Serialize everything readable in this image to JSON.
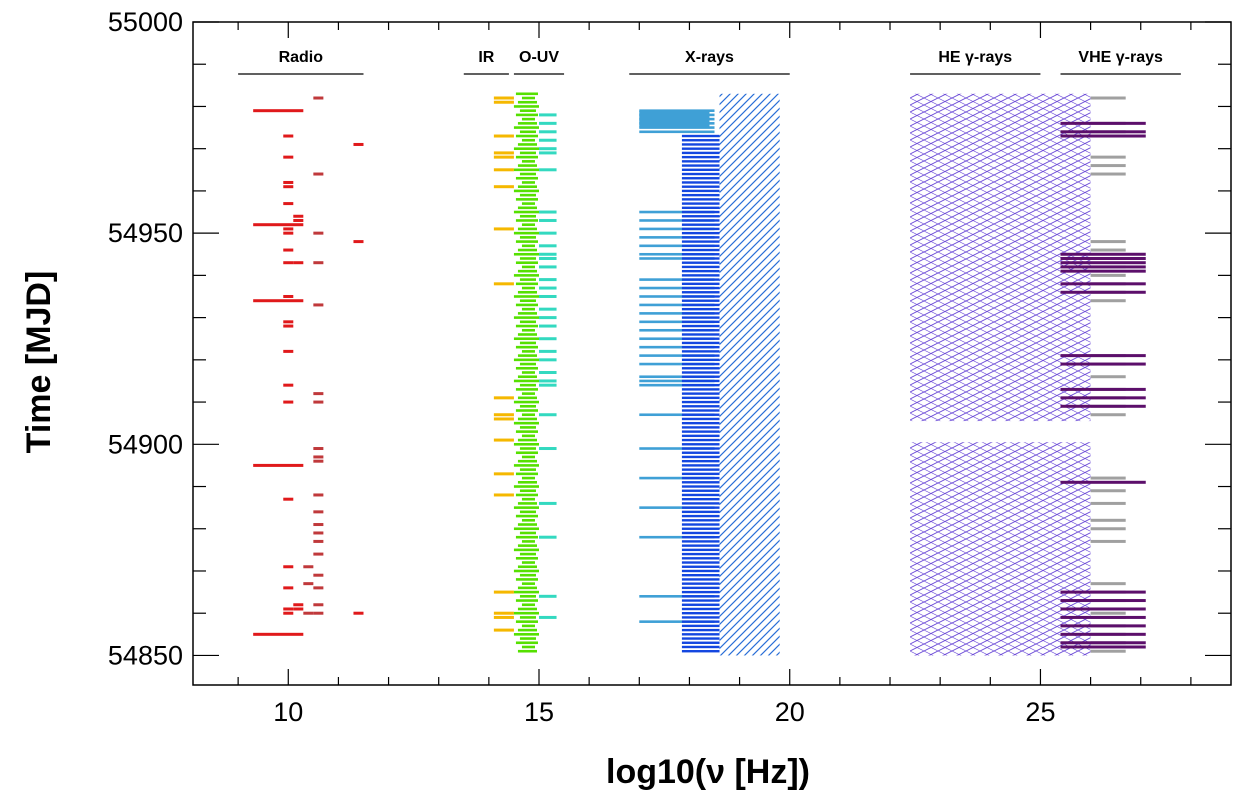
{
  "chart_data": {
    "type": "scatter",
    "xlabel": "log10(ν [Hz])",
    "ylabel": "Time [MJD]",
    "xlim": [
      8.1,
      28.8
    ],
    "ylim": [
      54843,
      55000
    ],
    "x_ticks": [
      10,
      15,
      20,
      25
    ],
    "y_ticks": [
      54850,
      54900,
      54950,
      55000
    ],
    "grid": false,
    "colors": {
      "radio": "#e0191b",
      "radio_dark": "#c0393b",
      "ir": "#f5b800",
      "optical": "#55e000",
      "uv": "#33d9c0",
      "xray_light": "#3fa0d6",
      "xray_dark": "#1346e0",
      "xray_hatch": "#2a6fd8",
      "he_hatch": "#6f4fd8",
      "vhe_grey": "#a0a0a0",
      "vhe_purple": "#5c0f6b"
    },
    "bands": [
      {
        "name": "Radio",
        "x_range": [
          9.0,
          11.5
        ]
      },
      {
        "name": "IR",
        "x_range": [
          13.5,
          14.4
        ]
      },
      {
        "name": "O-UV",
        "x_range": [
          14.5,
          15.5
        ]
      },
      {
        "name": "X-rays",
        "x_range": [
          16.8,
          20.0
        ]
      },
      {
        "name": "HE γ-rays",
        "x_range": [
          22.4,
          25.0
        ]
      },
      {
        "name": "VHE γ-rays",
        "x_range": [
          25.4,
          27.8
        ]
      }
    ],
    "series": [
      {
        "name": "Radio",
        "observations": [
          {
            "x": [
              9.3,
              10.3
            ],
            "mjd": [
              54979,
              54934,
              54952,
              54895,
              54855
            ]
          },
          {
            "x": [
              9.9,
              10.1
            ],
            "mjd": [
              54973,
              54968,
              54962,
              54961,
              54957,
              54951,
              54950,
              54946,
              54943,
              54935,
              54929,
              54928,
              54922,
              54914,
              54910,
              54887,
              54871,
              54866,
              54861,
              54860
            ]
          },
          {
            "x": [
              10.1,
              10.3
            ],
            "mjd": [
              54954,
              54953,
              54943,
              54862,
              54861
            ]
          },
          {
            "x": [
              10.5,
              10.7
            ],
            "mjd": [
              54982,
              54964,
              54950,
              54943,
              54933,
              54912,
              54910,
              54899,
              54897,
              54896,
              54888,
              54884,
              54881,
              54879,
              54877,
              54874,
              54869,
              54866,
              54862,
              54860
            ]
          },
          {
            "x": [
              10.3,
              10.5
            ],
            "mjd": [
              54871,
              54867,
              54860
            ]
          },
          {
            "x": [
              11.3,
              11.5
            ],
            "mjd": [
              54971,
              54948,
              54860
            ]
          }
        ]
      },
      {
        "name": "IR",
        "observations": [
          {
            "x": [
              14.1,
              14.5
            ],
            "mjd": [
              54982,
              54981,
              54973,
              54969,
              54968,
              54965,
              54961,
              54951,
              54938,
              54911,
              54907,
              54906,
              54901,
              54893,
              54888,
              54865,
              54860,
              54859,
              54856
            ]
          }
        ]
      },
      {
        "name": "Optical",
        "x": [
          14.5,
          15.0
        ],
        "mjd_range": [
          54851,
          54983
        ],
        "cadence": 1
      },
      {
        "name": "UV",
        "x": [
          15.0,
          15.35
        ],
        "mjd": [
          54978,
          54976,
          54974,
          54972,
          54970,
          54969,
          54965,
          54955,
          54953,
          54950,
          54947,
          54945,
          54944,
          54942,
          54939,
          54937,
          54935,
          54932,
          54930,
          54928,
          54925,
          54922,
          54920,
          54917,
          54915,
          54914,
          54907,
          54899,
          54886,
          54878,
          54864,
          54859
        ]
      },
      {
        "name": "X-ray (soft)",
        "observations": [
          {
            "x": [
              17.0,
              18.5
            ],
            "mjd": [
              54979,
              54978,
              54977,
              54976,
              54975,
              54974,
              54955,
              54953,
              54951,
              54949,
              54947,
              54945,
              54944,
              54939,
              54937,
              54935,
              54933,
              54931,
              54929,
              54927,
              54925,
              54923,
              54921,
              54919,
              54916,
              54915,
              54914,
              54907,
              54899,
              54892,
              54885,
              54878,
              54864,
              54858
            ]
          }
        ]
      },
      {
        "name": "X-ray (hard)",
        "x": [
          18.3,
          18.6
        ],
        "mjd_range": [
          54851,
          54973
        ],
        "cadence": 1
      },
      {
        "name": "X-ray (hatched)",
        "x": [
          18.6,
          19.8
        ],
        "mjd_range": [
          54850,
          54983
        ]
      },
      {
        "name": "HE γ-rays",
        "x": [
          22.4,
          26.0
        ],
        "mjd_ranges": [
          [
            54850,
            54900.5
          ],
          [
            54905.5,
            54983
          ]
        ]
      },
      {
        "name": "VHE γ-rays (grey)",
        "x": [
          26.0,
          26.7
        ],
        "mjd": [
          54982,
          54976,
          54974,
          54968,
          54966,
          54964,
          54948,
          54946,
          54944,
          54942,
          54940,
          54938,
          54936,
          54934,
          54921,
          54919,
          54916,
          54913,
          54911,
          54909,
          54907,
          54892,
          54889,
          54886,
          54882,
          54880,
          54877,
          54867,
          54865,
          54863,
          54861,
          54860,
          54859,
          54857,
          54855,
          54853,
          54851
        ]
      },
      {
        "name": "VHE γ-rays (purple)",
        "observations": [
          {
            "x": [
              25.4,
              27.1
            ],
            "mjd": [
              54976,
              54974,
              54973,
              54945,
              54944,
              54943,
              54942,
              54941,
              54938,
              54936,
              54921,
              54919,
              54913,
              54911,
              54909,
              54891,
              54865,
              54863,
              54861,
              54859,
              54857,
              54855,
              54853,
              54852
            ]
          }
        ]
      }
    ]
  }
}
